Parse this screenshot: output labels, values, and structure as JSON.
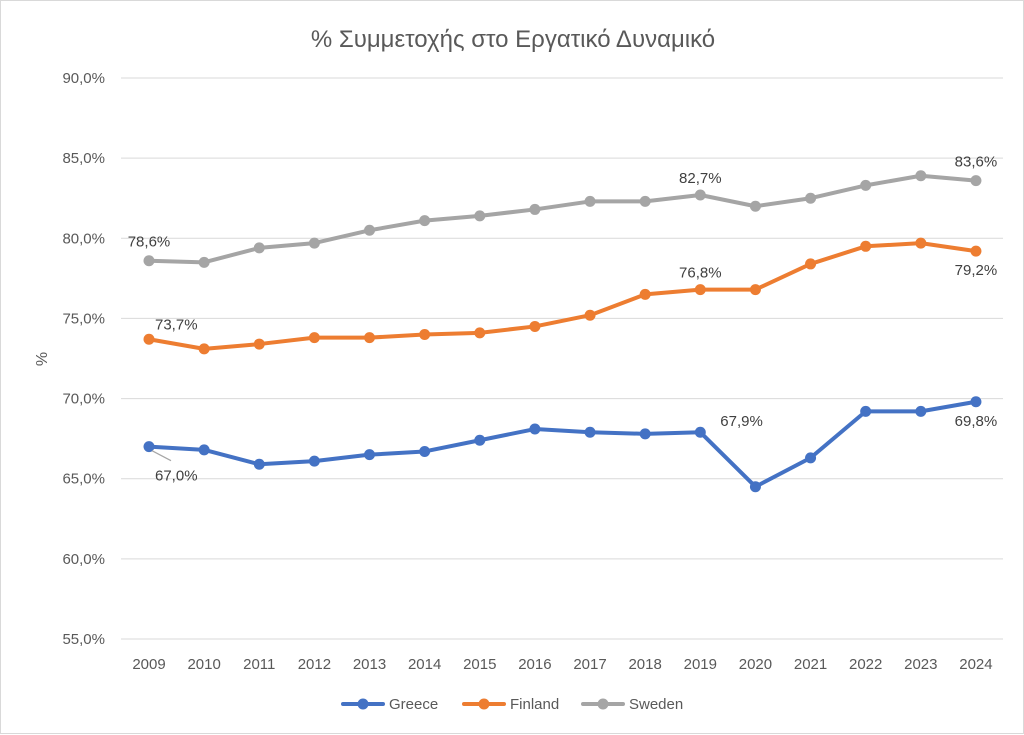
{
  "chart_data": {
    "type": "line",
    "title": "% Συμμετοχής στο Εργατικό Δυναμικό",
    "xlabel": "",
    "ylabel": "%",
    "ylim": [
      55.0,
      90.0
    ],
    "y_ticks": [
      "55,0%",
      "60,0%",
      "65,0%",
      "70,0%",
      "75,0%",
      "80,0%",
      "85,0%",
      "90,0%"
    ],
    "categories": [
      "2009",
      "2010",
      "2011",
      "2012",
      "2013",
      "2014",
      "2015",
      "2016",
      "2017",
      "2018",
      "2019",
      "2020",
      "2021",
      "2022",
      "2023",
      "2024"
    ],
    "grid": true,
    "legend_position": "bottom",
    "series": [
      {
        "name": "Greece",
        "color": "#4472c4",
        "values": [
          67.0,
          66.8,
          65.9,
          66.1,
          66.5,
          66.7,
          67.4,
          68.1,
          67.9,
          67.8,
          67.9,
          64.5,
          66.3,
          69.2,
          69.2,
          69.8
        ],
        "labels": [
          {
            "index": 0,
            "text": "67,0%"
          },
          {
            "index": 10,
            "text": "67,9%"
          },
          {
            "index": 15,
            "text": "69,8%"
          }
        ]
      },
      {
        "name": "Finland",
        "color": "#ed7d31",
        "values": [
          73.7,
          73.1,
          73.4,
          73.8,
          73.8,
          74.0,
          74.1,
          74.5,
          75.2,
          76.5,
          76.8,
          76.8,
          78.4,
          79.5,
          79.7,
          79.2
        ],
        "labels": [
          {
            "index": 0,
            "text": "73,7%"
          },
          {
            "index": 10,
            "text": "76,8%"
          },
          {
            "index": 15,
            "text": "79,2%"
          }
        ]
      },
      {
        "name": "Sweden",
        "color": "#a5a5a5",
        "values": [
          78.6,
          78.5,
          79.4,
          79.7,
          80.5,
          81.1,
          81.4,
          81.8,
          82.3,
          82.3,
          82.7,
          82.0,
          82.5,
          83.3,
          83.9,
          83.6
        ],
        "labels": [
          {
            "index": 0,
            "text": "78,6%"
          },
          {
            "index": 10,
            "text": "82,7%"
          },
          {
            "index": 15,
            "text": "83,6%"
          }
        ]
      }
    ]
  }
}
